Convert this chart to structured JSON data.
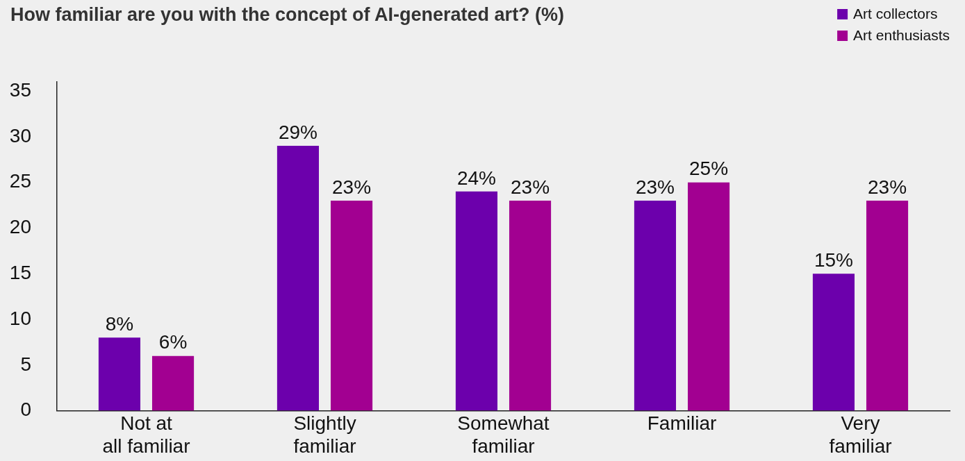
{
  "chart_data": {
    "type": "bar",
    "title": "How familiar are you with the concept of AI-generated art? (%)",
    "categories": [
      "Not at\nall familiar",
      "Slightly\nfamiliar",
      "Somewhat\nfamiliar",
      "Familiar",
      "Very\nfamiliar"
    ],
    "series": [
      {
        "name": "Art collectors",
        "color": "#6c00ac",
        "values": [
          8,
          29,
          24,
          23,
          15
        ],
        "value_labels": [
          "8%",
          "29%",
          "24%",
          "23%",
          "15%"
        ]
      },
      {
        "name": "Art enthusiasts",
        "color": "#a20091",
        "values": [
          6,
          23,
          23,
          25,
          23
        ],
        "value_labels": [
          "6%",
          "23%",
          "23%",
          "25%",
          "23%"
        ]
      }
    ],
    "ylim": [
      0,
      36
    ],
    "yticks": [
      0,
      5,
      10,
      15,
      20,
      25,
      30,
      35
    ],
    "legend": "top right"
  }
}
